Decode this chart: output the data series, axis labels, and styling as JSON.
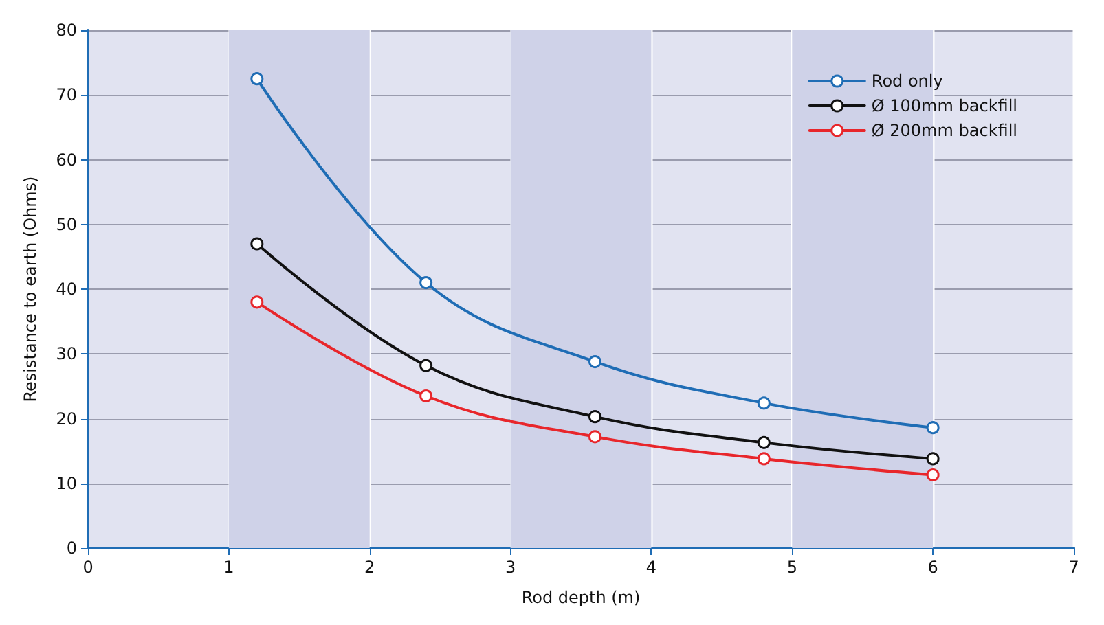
{
  "chart_data": {
    "type": "line",
    "xlabel": "Rod depth (m)",
    "ylabel": "Resistance to earth (Ohms)",
    "x": [
      1.2,
      2.4,
      3.6,
      4.8,
      6
    ],
    "series": [
      {
        "name": "Rod only",
        "color": "#1f6db5",
        "values": [
          72.5,
          41,
          28.8,
          22.4,
          18.6
        ]
      },
      {
        "name": "Ø 100mm backfill",
        "color": "#111111",
        "values": [
          47,
          28.2,
          20.3,
          16.3,
          13.8
        ]
      },
      {
        "name": "Ø 200mm backfill",
        "color": "#e8262b",
        "values": [
          38,
          23.5,
          17.2,
          13.8,
          11.3
        ]
      }
    ],
    "xlim": [
      0,
      7
    ],
    "xticks": [
      0,
      1,
      2,
      3,
      4,
      5,
      6,
      7
    ],
    "ylim": [
      0,
      80
    ],
    "yticks": [
      0,
      10,
      20,
      30,
      40,
      50,
      60,
      70,
      80
    ],
    "bands": [
      {
        "axis": "x",
        "from": 1,
        "to": 2,
        "color": "#cfd2e8"
      },
      {
        "axis": "x",
        "from": 3,
        "to": 4,
        "color": "#cfd2e8"
      },
      {
        "axis": "x",
        "from": 5,
        "to": 6,
        "color": "#cfd2e8"
      }
    ],
    "grid": true,
    "legend": "top right",
    "marker": "circle",
    "line_style": "solid"
  }
}
